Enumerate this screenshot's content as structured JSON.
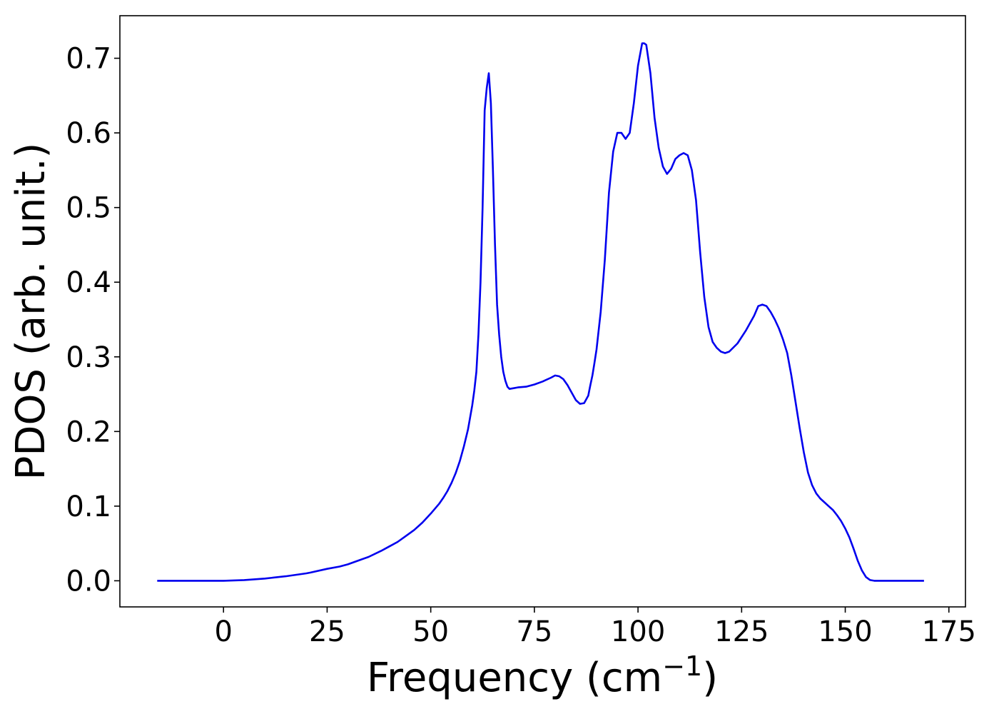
{
  "chart_data": {
    "type": "line",
    "title": "",
    "xlabel": "Frequency (cm",
    "xlabel_sup": "−1",
    "xlabel_close": ")",
    "ylabel": "PDOS (arb. unit.)",
    "xlim": [
      -25,
      179
    ],
    "ylim": [
      -0.035,
      0.757
    ],
    "xticks": [
      0,
      25,
      50,
      75,
      100,
      125,
      150,
      175
    ],
    "xtick_labels": [
      "0",
      "25",
      "50",
      "75",
      "100",
      "125",
      "150",
      "175"
    ],
    "yticks": [
      0.0,
      0.1,
      0.2,
      0.3,
      0.4,
      0.5,
      0.6,
      0.7
    ],
    "ytick_labels": [
      "0.0",
      "0.1",
      "0.2",
      "0.3",
      "0.4",
      "0.5",
      "0.6",
      "0.7"
    ],
    "grid": false,
    "legend": "none",
    "series": [
      {
        "color": "#0000ee",
        "x": [
          -16,
          -10,
          -5,
          0,
          5,
          10,
          15,
          20,
          21,
          25,
          28,
          30,
          33,
          35,
          38,
          40,
          42,
          44,
          46,
          48,
          50,
          52,
          53,
          54,
          55,
          56,
          57,
          58,
          59,
          60,
          60.5,
          61,
          61.5,
          62,
          62.5,
          63,
          63.5,
          64,
          64.5,
          65,
          65.5,
          66,
          66.5,
          67,
          67.5,
          68,
          68.5,
          69,
          70,
          71,
          73,
          75,
          77,
          79,
          80,
          81,
          82,
          83,
          84,
          85,
          86,
          87,
          88,
          88.5,
          89,
          89.5,
          90,
          91,
          92,
          93,
          94,
          95,
          96,
          97,
          98,
          99,
          100,
          101,
          101.5,
          102,
          103,
          104,
          105,
          106,
          107,
          108,
          109,
          110,
          111,
          112,
          113,
          114,
          115,
          116,
          117,
          118,
          119,
          120,
          121,
          122,
          124,
          126,
          128,
          129,
          130,
          131,
          132,
          133,
          134,
          135,
          136,
          137,
          138,
          139,
          140,
          141,
          142,
          143,
          144,
          145,
          146,
          147,
          148,
          149,
          150,
          151,
          152,
          153,
          154,
          155,
          156,
          157,
          158,
          160,
          165,
          169
        ],
        "y": [
          0.0,
          0.0,
          0.0,
          0.0,
          0.001,
          0.003,
          0.006,
          0.01,
          0.011,
          0.016,
          0.019,
          0.022,
          0.028,
          0.032,
          0.04,
          0.046,
          0.052,
          0.06,
          0.068,
          0.078,
          0.09,
          0.103,
          0.111,
          0.12,
          0.131,
          0.144,
          0.16,
          0.18,
          0.203,
          0.235,
          0.255,
          0.28,
          0.33,
          0.4,
          0.5,
          0.63,
          0.66,
          0.68,
          0.64,
          0.55,
          0.45,
          0.37,
          0.33,
          0.3,
          0.28,
          0.268,
          0.26,
          0.257,
          0.258,
          0.259,
          0.26,
          0.263,
          0.267,
          0.272,
          0.275,
          0.274,
          0.27,
          0.262,
          0.252,
          0.242,
          0.237,
          0.238,
          0.248,
          0.262,
          0.275,
          0.292,
          0.31,
          0.36,
          0.43,
          0.52,
          0.575,
          0.6,
          0.6,
          0.592,
          0.6,
          0.64,
          0.69,
          0.72,
          0.72,
          0.718,
          0.68,
          0.62,
          0.58,
          0.555,
          0.545,
          0.552,
          0.565,
          0.57,
          0.573,
          0.57,
          0.55,
          0.51,
          0.44,
          0.38,
          0.34,
          0.32,
          0.312,
          0.307,
          0.305,
          0.307,
          0.318,
          0.335,
          0.355,
          0.368,
          0.37,
          0.368,
          0.36,
          0.35,
          0.338,
          0.323,
          0.305,
          0.275,
          0.24,
          0.205,
          0.172,
          0.145,
          0.128,
          0.117,
          0.11,
          0.105,
          0.1,
          0.095,
          0.088,
          0.08,
          0.07,
          0.058,
          0.043,
          0.027,
          0.014,
          0.005,
          0.001,
          0.0,
          0.0,
          0.0,
          0.0,
          0.0
        ]
      }
    ]
  }
}
